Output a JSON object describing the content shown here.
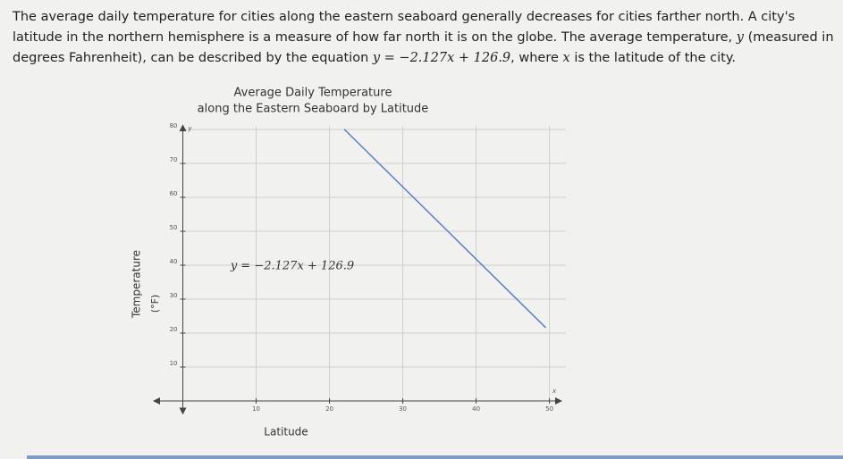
{
  "paragraph": [
    "The average daily temperature for cities along the eastern seaboard generally decreases for cities farther north. A city's latitude in the northern hemisphere is a measure of how far north it is on the globe. The average temperature, ",
    "y",
    " (measured in degrees Fahrenheit), can be described by the equation ",
    "y = −2.127x + 126.9",
    ", where ",
    "x",
    " is the latitude of the city."
  ],
  "chart_data": {
    "type": "line",
    "title": "Average Daily Temperature",
    "subtitle": "along the Eastern Seaboard by Latitude",
    "y_label": "Temperature",
    "y_unit": "(°F)",
    "x_label": "Latitude",
    "x_axis_letter": "x",
    "y_axis_letter": "y",
    "annotation": "y = −2.127x + 126.9",
    "x": [
      22,
      49.5
    ],
    "values": [
      80.1,
      21.6
    ],
    "color": "#5b7fc4",
    "xlim": [
      -3.6,
      52
    ],
    "ylim": [
      -3,
      81
    ],
    "xticks": [
      10,
      20,
      30,
      40,
      50
    ],
    "yticks": [
      10,
      20,
      30,
      40,
      50,
      60,
      70,
      80
    ],
    "grid": true
  }
}
